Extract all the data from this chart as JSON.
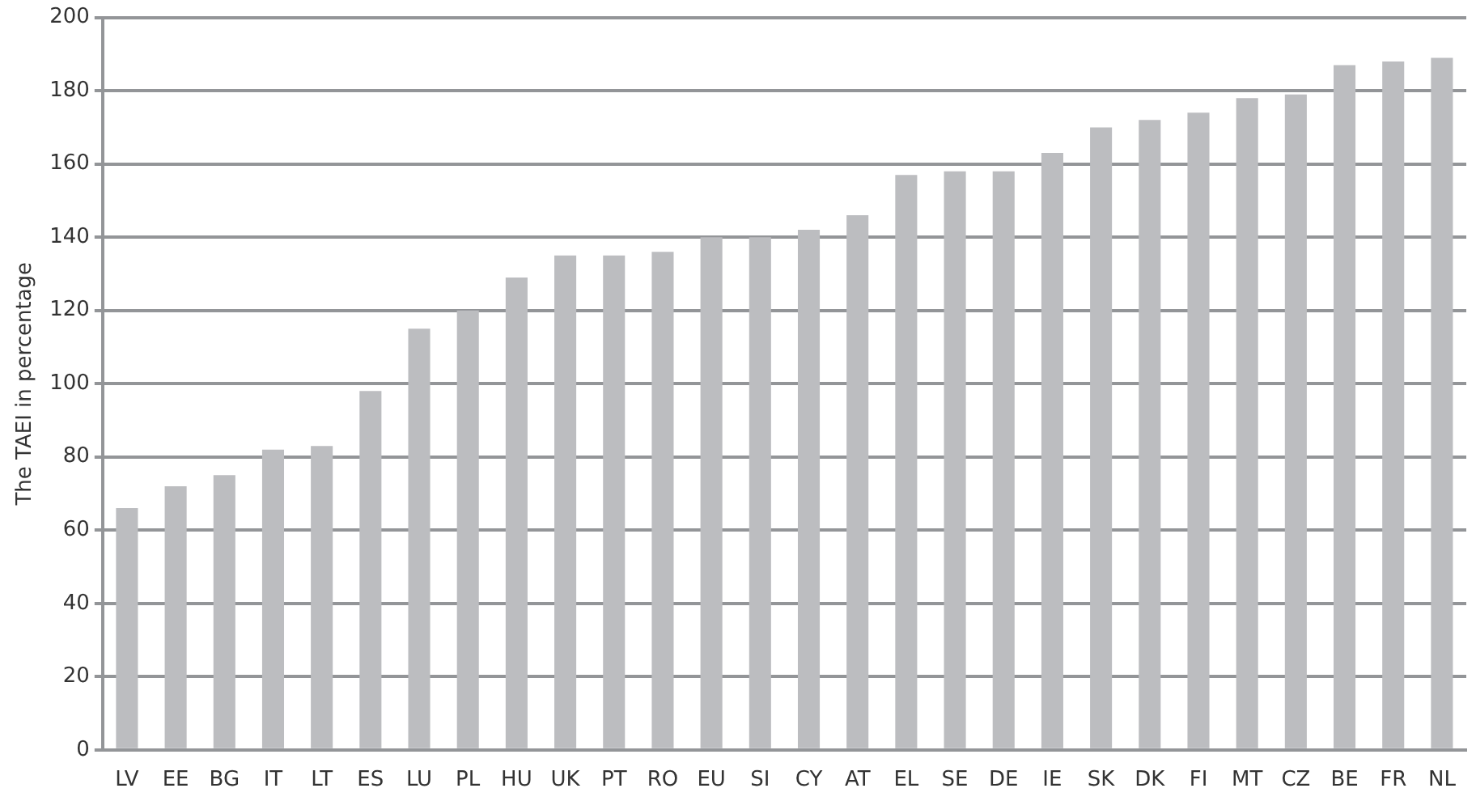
{
  "chart_data": {
    "type": "bar",
    "ylabel": "The TAEI in percentage",
    "categories": [
      "LV",
      "EE",
      "BG",
      "IT",
      "LT",
      "ES",
      "LU",
      "PL",
      "HU",
      "UK",
      "PT",
      "RO",
      "EU",
      "SI",
      "CY",
      "AT",
      "EL",
      "SE",
      "DE",
      "IE",
      "SK",
      "DK",
      "FI",
      "MT",
      "CZ",
      "BE",
      "FR",
      "NL"
    ],
    "values": [
      66,
      72,
      75,
      82,
      83,
      98,
      115,
      120,
      129,
      135,
      135,
      136,
      140,
      140,
      142,
      146,
      157,
      158,
      158,
      163,
      170,
      172,
      174,
      178,
      179,
      187,
      188,
      189
    ],
    "color": "#bcbdc0",
    "ylim": [
      0,
      200
    ],
    "yticks": [
      0,
      20,
      40,
      60,
      80,
      100,
      120,
      140,
      160,
      180,
      200
    ],
    "grid": "y",
    "legend": false
  }
}
